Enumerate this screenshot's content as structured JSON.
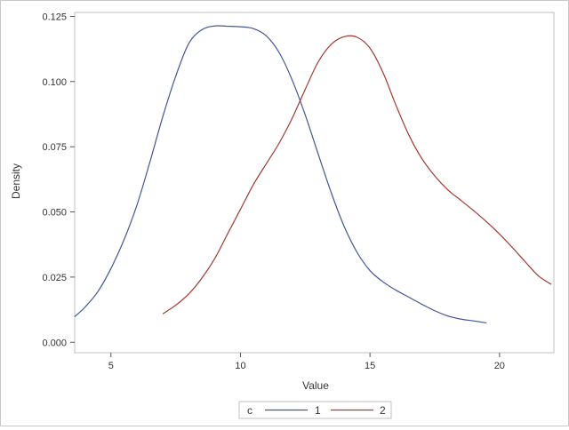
{
  "chart_data": {
    "type": "line",
    "title": "",
    "xlabel": "Value",
    "ylabel": "Density",
    "xlim": [
      3.6,
      22.1
    ],
    "ylim": [
      -0.004,
      0.1265
    ],
    "xticks": [
      {
        "value": 5,
        "label": "5"
      },
      {
        "value": 10,
        "label": "10"
      },
      {
        "value": 15,
        "label": "15"
      },
      {
        "value": 20,
        "label": "20"
      }
    ],
    "yticks": [
      {
        "value": 0,
        "label": "0.000"
      },
      {
        "value": 0.025,
        "label": "0.025"
      },
      {
        "value": 0.05,
        "label": "0.050"
      },
      {
        "value": 0.075,
        "label": "0.075"
      },
      {
        "value": 0.1,
        "label": "0.100"
      },
      {
        "value": 0.125,
        "label": "0.125"
      }
    ],
    "grid": false,
    "legend": {
      "title": "c",
      "position": "bottom-center"
    },
    "series": [
      {
        "name": "1",
        "color": "#445694",
        "x": [
          3.6,
          4.0,
          4.5,
          5.0,
          5.5,
          6.0,
          6.5,
          7.0,
          7.5,
          8.0,
          8.5,
          9.0,
          9.5,
          10.0,
          10.5,
          11.0,
          11.5,
          12.0,
          12.5,
          13.0,
          13.5,
          14.0,
          14.5,
          15.0,
          15.5,
          16.0,
          16.5,
          17.0,
          17.5,
          18.0,
          18.5,
          19.0,
          19.5
        ],
        "y": [
          0.0098,
          0.0135,
          0.0195,
          0.0283,
          0.0392,
          0.0525,
          0.069,
          0.0865,
          0.102,
          0.1145,
          0.1198,
          0.1213,
          0.1212,
          0.121,
          0.1203,
          0.1175,
          0.111,
          0.1005,
          0.0872,
          0.0722,
          0.0575,
          0.0445,
          0.0345,
          0.0275,
          0.0232,
          0.02,
          0.0173,
          0.0146,
          0.0121,
          0.0101,
          0.0089,
          0.0082,
          0.0074
        ]
      },
      {
        "name": "2",
        "color": "#a23a2e",
        "x": [
          7.0,
          7.5,
          8.0,
          8.5,
          9.0,
          9.5,
          10.0,
          10.5,
          11.0,
          11.5,
          12.0,
          12.5,
          13.0,
          13.5,
          14.0,
          14.5,
          15.0,
          15.5,
          16.0,
          16.5,
          17.0,
          17.5,
          18.0,
          18.5,
          19.0,
          19.5,
          20.0,
          20.5,
          21.0,
          21.5,
          22.0
        ],
        "y": [
          0.0109,
          0.0142,
          0.0185,
          0.0245,
          0.032,
          0.0415,
          0.051,
          0.0605,
          0.0685,
          0.0765,
          0.086,
          0.097,
          0.1075,
          0.1142,
          0.1172,
          0.117,
          0.1128,
          0.1035,
          0.091,
          0.0795,
          0.0705,
          0.0638,
          0.0585,
          0.0545,
          0.0505,
          0.0462,
          0.0415,
          0.0363,
          0.0308,
          0.0255,
          0.0222
        ]
      }
    ]
  }
}
